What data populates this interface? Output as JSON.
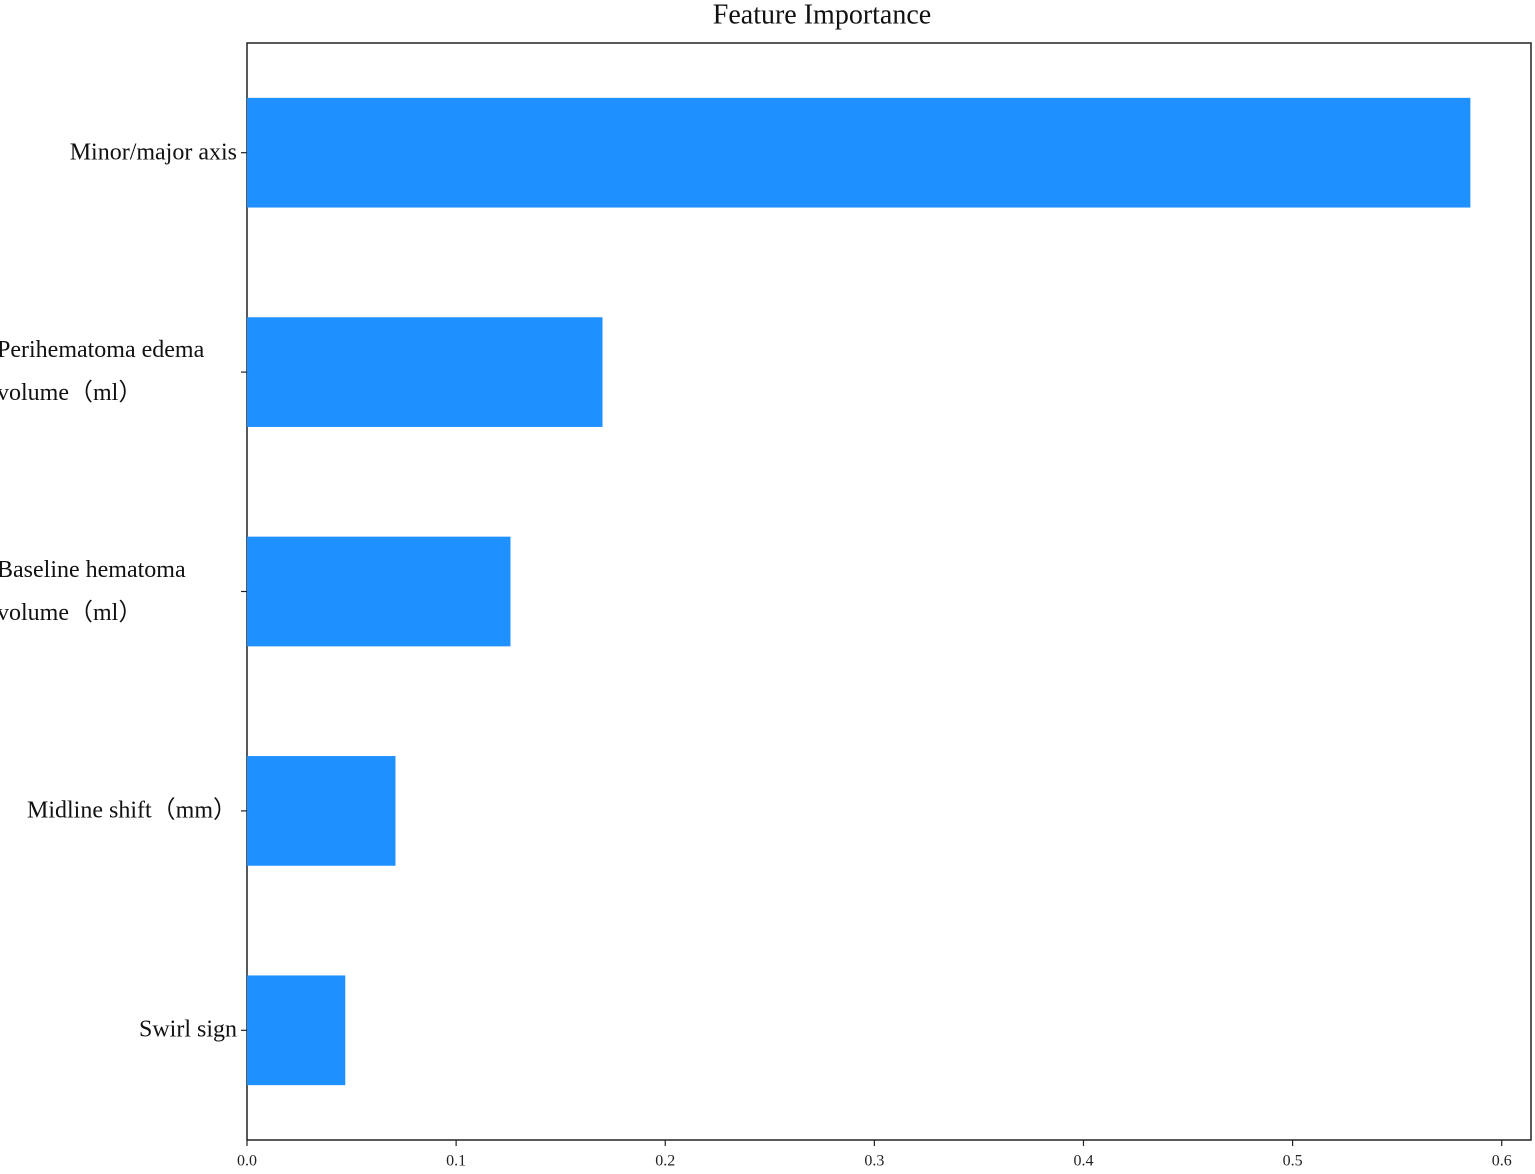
{
  "chart_data": {
    "type": "barh",
    "title": "Feature Importance",
    "categories": [
      "Minor/major axis",
      "Perihematoma edema volume（ml）",
      "Baseline hematoma volume（ml）",
      "Midline shift（mm）",
      "Swirl sign"
    ],
    "values": [
      0.585,
      0.17,
      0.126,
      0.071,
      0.047
    ],
    "color": "#1e90ff",
    "xlim": [
      0,
      0.614
    ],
    "xticks": [
      {
        "value": 0,
        "label": "0.0"
      },
      {
        "value": 0.1,
        "label": "0.1"
      },
      {
        "value": 0.2,
        "label": "0.2"
      },
      {
        "value": 0.3,
        "label": "0.3"
      },
      {
        "value": 0.4,
        "label": "0.4"
      },
      {
        "value": 0.5,
        "label": "0.5"
      },
      {
        "value": 0.6,
        "label": "0.6"
      }
    ],
    "grid": false
  }
}
